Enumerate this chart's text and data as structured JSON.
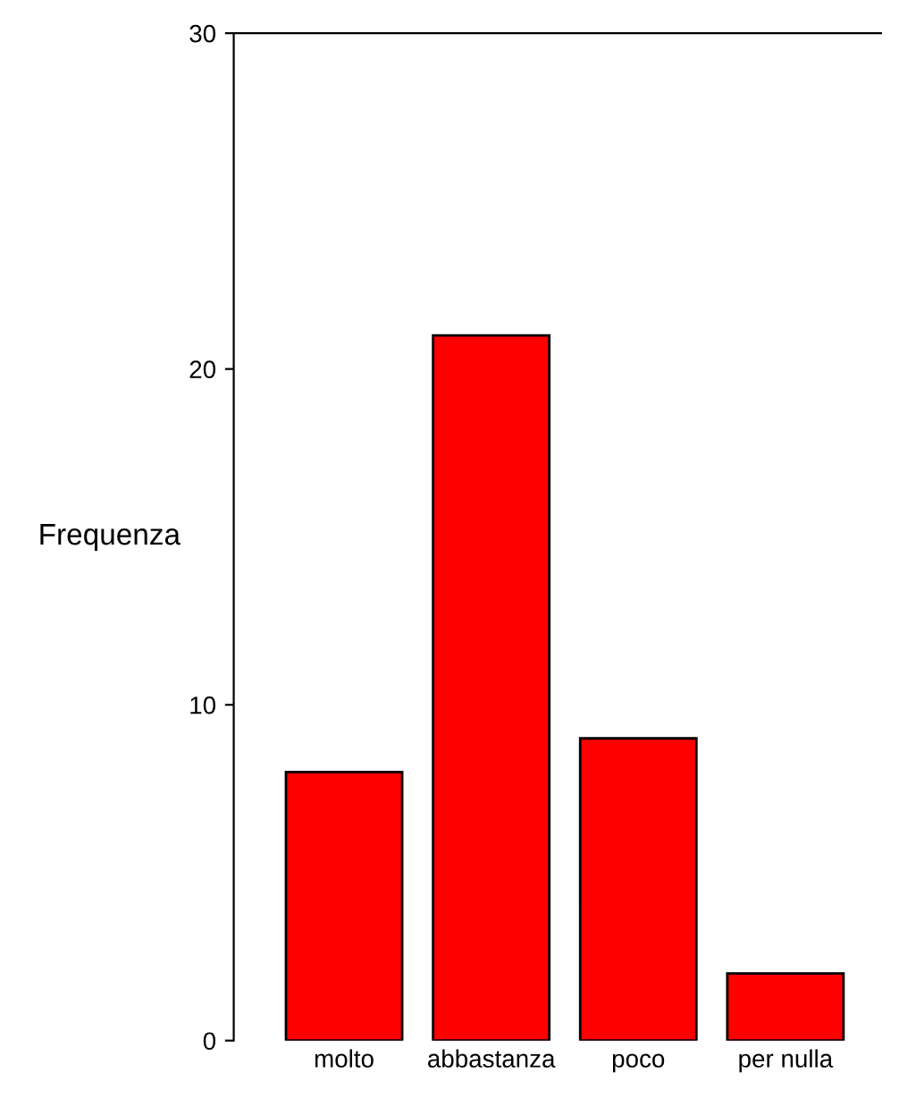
{
  "chart_data": {
    "type": "bar",
    "ylabel": "Frequenza",
    "categories": [
      "molto",
      "abbastanza",
      "poco",
      "per nulla"
    ],
    "values": [
      8,
      21,
      9,
      2
    ],
    "color": "#ff0000",
    "ylim": [
      0,
      30
    ],
    "yticks": [
      0,
      10,
      20,
      30
    ],
    "grid": false,
    "legend": false
  }
}
